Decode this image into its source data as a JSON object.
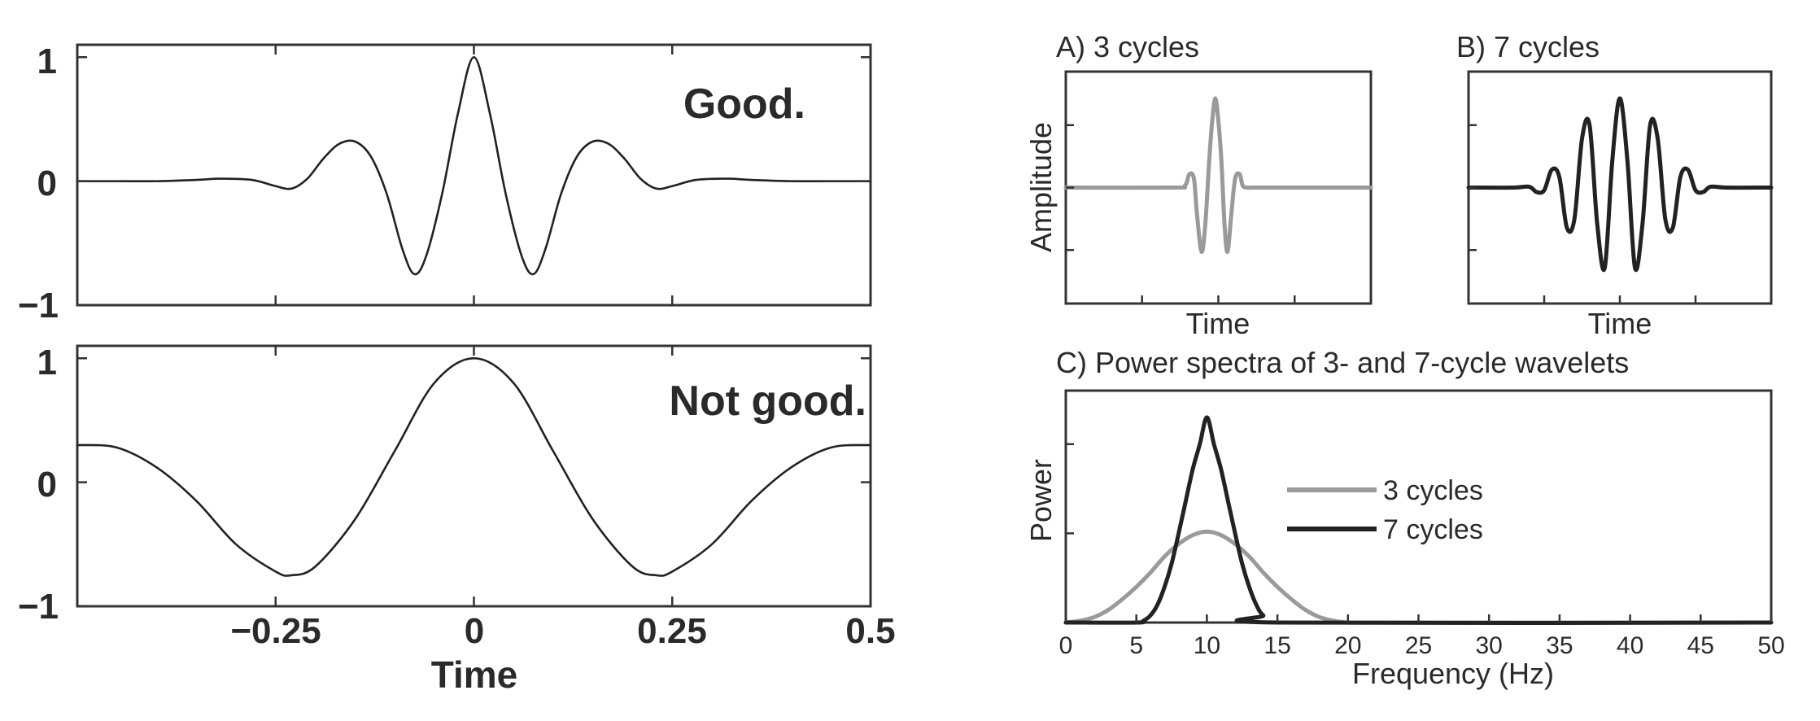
{
  "colors": {
    "dark": "#222222",
    "gray": "#9a9a9a",
    "axis": "#333333"
  },
  "chart_data": [
    {
      "id": "left-top",
      "type": "line",
      "title": "",
      "annotation": "Good.",
      "xlabel": "",
      "ylabel": "",
      "xlim": [
        -0.5,
        0.5
      ],
      "ylim": [
        -1,
        1.1
      ],
      "yticks": [
        "1",
        "0",
        "−1"
      ],
      "xticks": [],
      "xtick_positions": [
        -0.25,
        0,
        0.25
      ],
      "series": [
        {
          "x": [
            -0.5,
            -0.45,
            -0.4,
            -0.35,
            -0.32,
            -0.28,
            -0.25,
            -0.23,
            -0.21,
            -0.19,
            -0.17,
            -0.15,
            -0.13,
            -0.11,
            -0.09,
            -0.075,
            -0.06,
            -0.04,
            -0.02,
            0,
            0.02,
            0.04,
            0.06,
            0.075,
            0.09,
            0.11,
            0.13,
            0.15,
            0.17,
            0.19,
            0.21,
            0.23,
            0.25,
            0.28,
            0.32,
            0.35,
            0.4,
            0.45,
            0.5
          ],
          "y": [
            0,
            0,
            0,
            0.01,
            0.02,
            0.01,
            -0.04,
            -0.06,
            0.02,
            0.18,
            0.3,
            0.32,
            0.2,
            -0.1,
            -0.55,
            -0.75,
            -0.6,
            -0.1,
            0.55,
            1.0,
            0.55,
            -0.1,
            -0.6,
            -0.75,
            -0.55,
            -0.1,
            0.2,
            0.32,
            0.3,
            0.18,
            0.02,
            -0.06,
            -0.04,
            0.01,
            0.02,
            0.01,
            0,
            0,
            0
          ]
        }
      ]
    },
    {
      "id": "left-bottom",
      "type": "line",
      "title": "",
      "annotation": "Not good.",
      "xlabel": "Time",
      "ylabel": "",
      "xlim": [
        -0.5,
        0.5
      ],
      "ylim": [
        -1,
        1.1
      ],
      "yticks": [
        "1",
        "0",
        "−1"
      ],
      "xticks": [
        "−0.25",
        "0",
        "0.25",
        "0.5"
      ],
      "xtick_positions": [
        -0.25,
        0,
        0.25,
        0.5
      ],
      "series": [
        {
          "x": [
            -0.5,
            -0.45,
            -0.4,
            -0.35,
            -0.3,
            -0.25,
            -0.23,
            -0.2,
            -0.15,
            -0.1,
            -0.05,
            0,
            0.05,
            0.1,
            0.15,
            0.2,
            0.23,
            0.25,
            0.3,
            0.35,
            0.4,
            0.45,
            0.5
          ],
          "y": [
            0.3,
            0.28,
            0.12,
            -0.15,
            -0.5,
            -0.72,
            -0.75,
            -0.68,
            -0.3,
            0.25,
            0.8,
            1.0,
            0.8,
            0.25,
            -0.3,
            -0.68,
            -0.75,
            -0.72,
            -0.5,
            -0.15,
            0.12,
            0.28,
            0.3
          ]
        }
      ]
    },
    {
      "id": "panel-a",
      "type": "line",
      "title": "A)  3 cycles",
      "xlabel": "Time",
      "ylabel": "Amplitude",
      "xlim": [
        -1,
        1
      ],
      "ylim": [
        -1.3,
        1.3
      ],
      "series": [
        {
          "color_key": "gray",
          "x": [
            -1,
            -0.3,
            -0.22,
            -0.19,
            -0.16,
            -0.14,
            -0.11,
            -0.085,
            -0.06,
            -0.04,
            -0.02,
            0,
            0.02,
            0.04,
            0.06,
            0.085,
            0.11,
            0.14,
            0.16,
            0.19,
            0.22,
            0.3,
            1
          ],
          "y": [
            0,
            0,
            0.02,
            0.15,
            0.1,
            -0.3,
            -0.72,
            -0.4,
            0.3,
            0.75,
            1.0,
            0.75,
            0.3,
            -0.4,
            -0.72,
            -0.3,
            0.1,
            0.15,
            0.02,
            0,
            0,
            0,
            0
          ]
        }
      ]
    },
    {
      "id": "panel-b",
      "type": "line",
      "title": "B)  7 cycles",
      "xlabel": "Time",
      "ylabel": "",
      "xlim": [
        -1,
        1
      ],
      "ylim": [
        -1.3,
        1.3
      ],
      "series": [
        {
          "color_key": "dark",
          "x": [
            -1,
            -0.7,
            -0.6,
            -0.55,
            -0.5,
            -0.45,
            -0.4,
            -0.35,
            -0.3,
            -0.25,
            -0.2,
            -0.15,
            -0.1,
            -0.05,
            0,
            0.05,
            0.1,
            0.15,
            0.2,
            0.25,
            0.3,
            0.35,
            0.4,
            0.45,
            0.5,
            0.55,
            0.6,
            0.7,
            1
          ],
          "y": [
            0,
            0,
            0.01,
            -0.05,
            -0.03,
            0.2,
            0.12,
            -0.45,
            -0.35,
            0.55,
            0.7,
            -0.4,
            -0.9,
            0.3,
            1.0,
            0.3,
            -0.9,
            -0.4,
            0.7,
            0.55,
            -0.35,
            -0.45,
            0.12,
            0.2,
            -0.03,
            -0.05,
            0.01,
            0,
            0
          ]
        }
      ]
    },
    {
      "id": "panel-c",
      "type": "line",
      "title": "C)  Power spectra of 3- and 7-cycle wavelets",
      "xlabel": "Frequency (Hz)",
      "ylabel": "Power",
      "xlim": [
        0,
        50
      ],
      "ylim": [
        0,
        1.3
      ],
      "xticks": [
        "0",
        "5",
        "10",
        "15",
        "20",
        "25",
        "30",
        "35",
        "40",
        "45",
        "50"
      ],
      "legend": {
        "placement": "center",
        "entries": [
          "3 cycles",
          "7 cycles"
        ]
      },
      "series": [
        {
          "name": "3 cycles",
          "color_key": "gray",
          "x": [
            0,
            1,
            2,
            3,
            4,
            5,
            6,
            7,
            8,
            9,
            10,
            11,
            12,
            13,
            14,
            15,
            16,
            17,
            18,
            19,
            20,
            22,
            25,
            50
          ],
          "y": [
            0,
            0.01,
            0.03,
            0.07,
            0.13,
            0.2,
            0.28,
            0.37,
            0.44,
            0.49,
            0.51,
            0.49,
            0.44,
            0.37,
            0.28,
            0.2,
            0.13,
            0.07,
            0.03,
            0.01,
            0,
            0,
            0,
            0
          ]
        },
        {
          "name": "7 cycles",
          "color_key": "dark",
          "x": [
            0,
            5,
            5.5,
            6,
            6.5,
            7,
            7.5,
            8,
            8.5,
            9,
            9.5,
            10,
            10.5,
            11,
            11.5,
            12,
            12.5,
            13,
            13.5,
            14,
            15,
            50
          ],
          "y": [
            0,
            0,
            0.01,
            0.04,
            0.1,
            0.2,
            0.33,
            0.5,
            0.68,
            0.86,
            1.0,
            1.15,
            1.0,
            0.86,
            0.68,
            0.5,
            0.33,
            0.2,
            0.1,
            0.04,
            0,
            0
          ]
        }
      ]
    }
  ]
}
